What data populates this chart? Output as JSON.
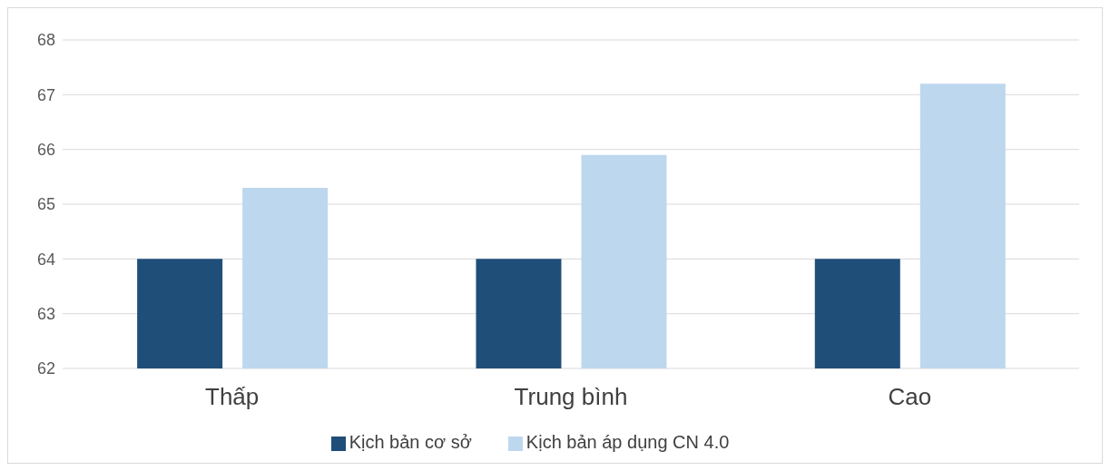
{
  "chart_data": {
    "type": "bar",
    "categories": [
      "Thấp",
      "Trung bình",
      "Cao"
    ],
    "series": [
      {
        "name": "Kịch bản cơ sở",
        "color": "#1f4e79",
        "values": [
          64,
          64,
          64
        ]
      },
      {
        "name": "Kịch bản áp dụng CN 4.0",
        "color": "#bdd7ee",
        "values": [
          65.3,
          65.9,
          67.2
        ]
      }
    ],
    "ylim": [
      62,
      68
    ],
    "yticks": [
      62,
      63,
      64,
      65,
      66,
      67,
      68
    ],
    "grid": "y",
    "legend": "bottom"
  }
}
